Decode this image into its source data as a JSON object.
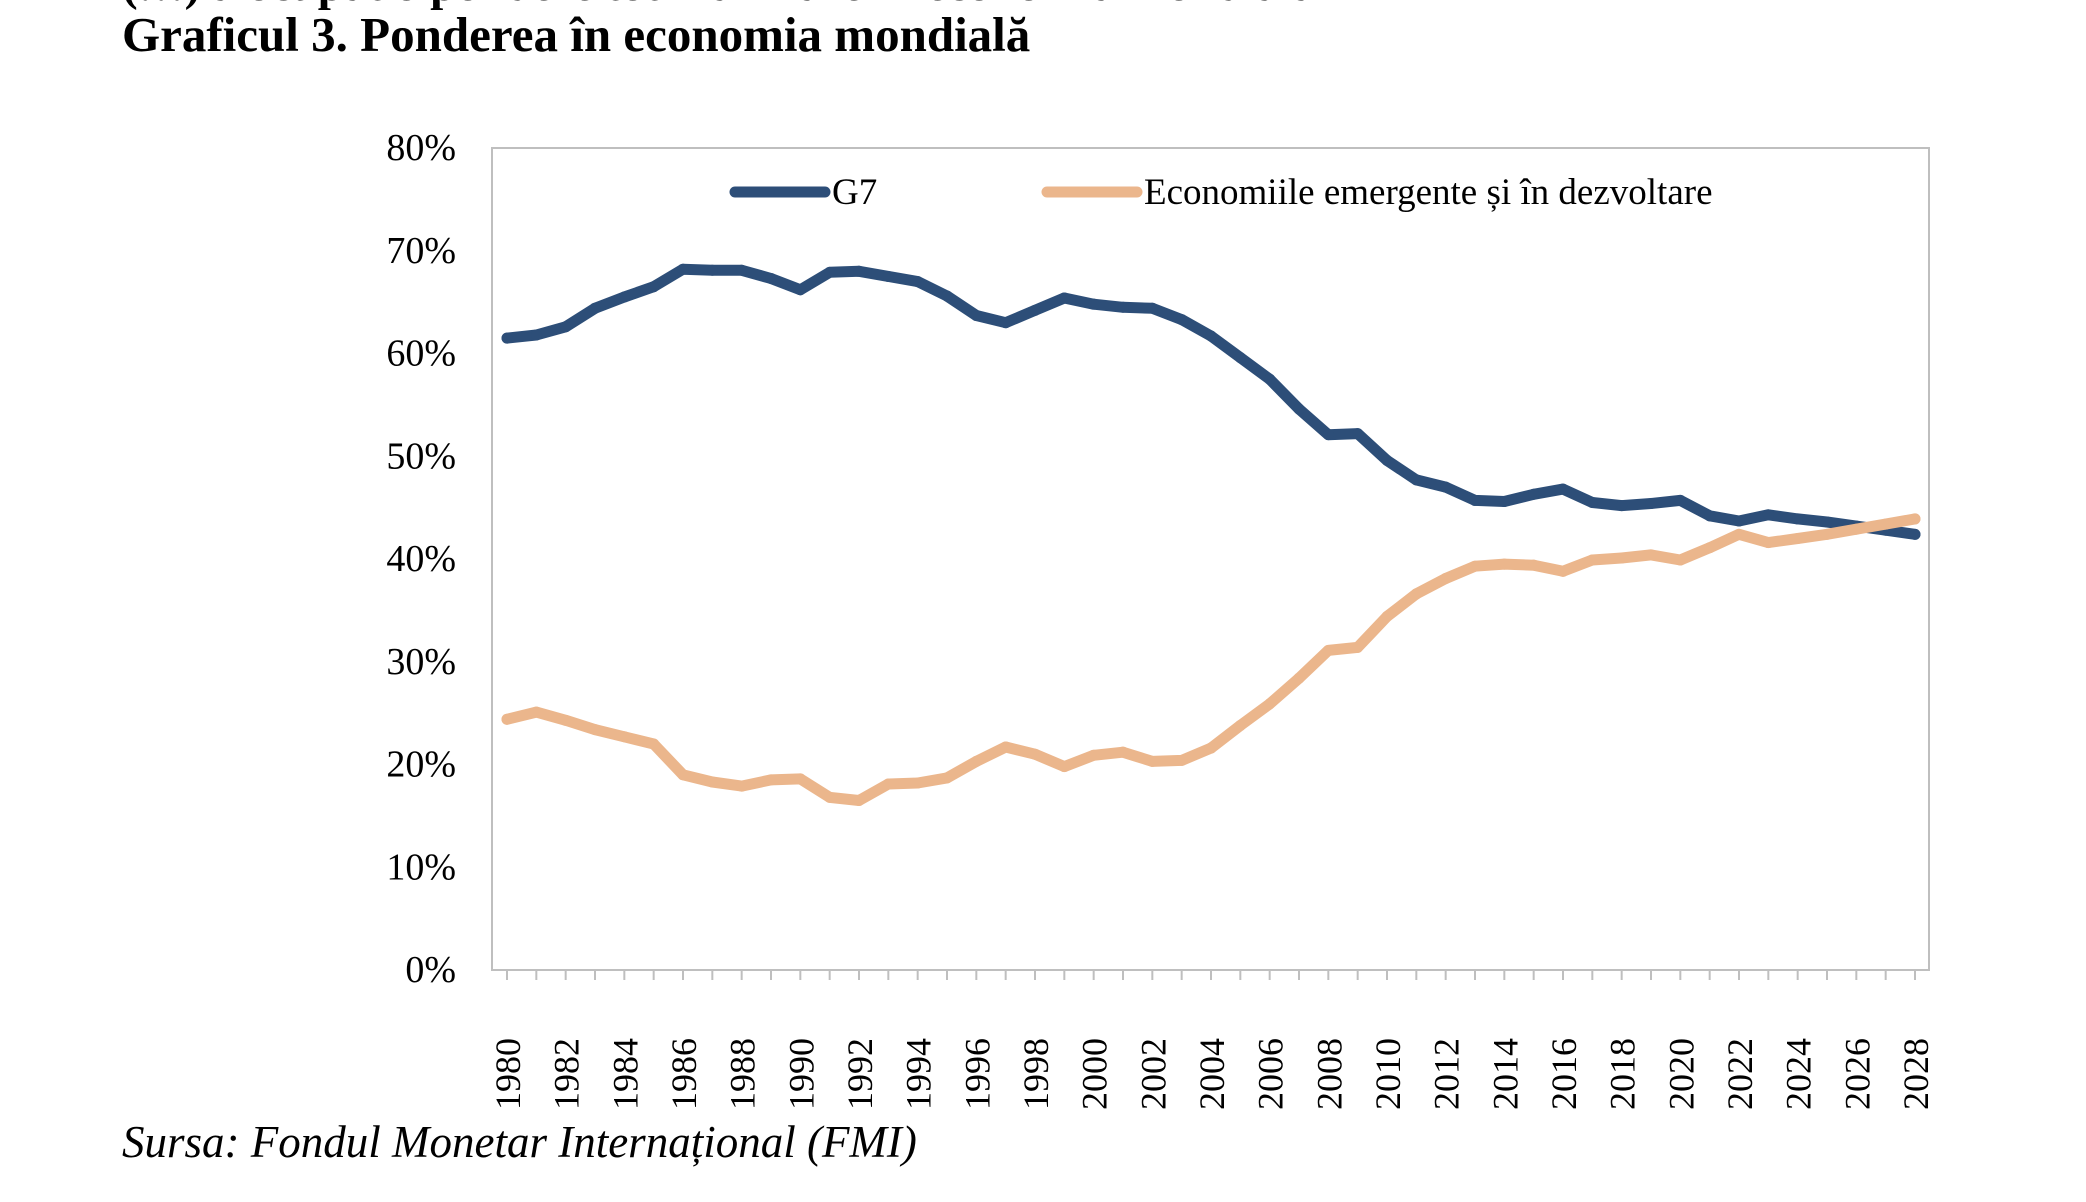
{
  "header": {
    "cut_text": "(…) a ocupat o pondere tot mai mare în economia mondială",
    "title": "Graficul 3. Ponderea în economia mondială"
  },
  "footer": {
    "source": "Sursa: Fondul Monetar Internațional (FMI)"
  },
  "chart_data": {
    "type": "line",
    "title": "",
    "xlabel": "",
    "ylabel": "",
    "ylim": [
      0,
      0.8
    ],
    "y_ticks": [
      0,
      0.1,
      0.2,
      0.3,
      0.4,
      0.5,
      0.6,
      0.7,
      0.8
    ],
    "y_tick_labels": [
      "0%",
      "10%",
      "20%",
      "30%",
      "40%",
      "50%",
      "60%",
      "70%",
      "80%"
    ],
    "x": [
      1980,
      1981,
      1982,
      1983,
      1984,
      1985,
      1986,
      1987,
      1988,
      1989,
      1990,
      1991,
      1992,
      1993,
      1994,
      1995,
      1996,
      1997,
      1998,
      1999,
      2000,
      2001,
      2002,
      2003,
      2004,
      2005,
      2006,
      2007,
      2008,
      2009,
      2010,
      2011,
      2012,
      2013,
      2014,
      2015,
      2016,
      2017,
      2018,
      2019,
      2020,
      2021,
      2022,
      2023,
      2024,
      2025,
      2026,
      2027,
      2028
    ],
    "x_tick_labels": [
      "1980",
      "1982",
      "1984",
      "1986",
      "1988",
      "1990",
      "1992",
      "1994",
      "1996",
      "1998",
      "2000",
      "2002",
      "2004",
      "2006",
      "2008",
      "2010",
      "2012",
      "2014",
      "2016",
      "2018",
      "2020",
      "2022",
      "2024",
      "2026",
      "2028"
    ],
    "legend": {
      "placement": "top-center",
      "orientation": "horizontal"
    },
    "grid": false,
    "series": [
      {
        "name": "G7",
        "color": "#2d4e78",
        "values": [
          0.615,
          0.618,
          0.626,
          0.644,
          0.655,
          0.665,
          0.682,
          0.681,
          0.681,
          0.673,
          0.662,
          0.679,
          0.68,
          0.675,
          0.67,
          0.656,
          0.637,
          0.63,
          0.642,
          0.654,
          0.648,
          0.645,
          0.644,
          0.633,
          0.617,
          0.596,
          0.575,
          0.546,
          0.521,
          0.522,
          0.496,
          0.477,
          0.47,
          0.457,
          0.456,
          0.463,
          0.468,
          0.455,
          0.452,
          0.454,
          0.457,
          0.442,
          0.437,
          0.443,
          0.439,
          0.436,
          0.432,
          0.428,
          0.424
        ]
      },
      {
        "name": "Economiile emergente și în dezvoltare",
        "color": "#ebb68c",
        "values": [
          0.244,
          0.251,
          0.243,
          0.234,
          0.227,
          0.22,
          0.19,
          0.183,
          0.179,
          0.185,
          0.186,
          0.168,
          0.165,
          0.181,
          0.182,
          0.187,
          0.203,
          0.217,
          0.21,
          0.198,
          0.209,
          0.212,
          0.203,
          0.204,
          0.216,
          0.238,
          0.259,
          0.284,
          0.311,
          0.314,
          0.344,
          0.366,
          0.381,
          0.393,
          0.395,
          0.394,
          0.388,
          0.399,
          0.401,
          0.404,
          0.399,
          0.411,
          0.424,
          0.416,
          0.42,
          0.424,
          0.429,
          0.434,
          0.439
        ]
      }
    ]
  }
}
